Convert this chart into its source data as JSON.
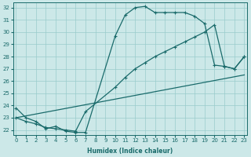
{
  "xlabel": "Humidex (Indice chaleur)",
  "bg_color": "#cce8e8",
  "line_color": "#1a6b6b",
  "grid_color": "#99cccc",
  "xlim": [
    -0.3,
    23.3
  ],
  "ylim": [
    21.6,
    32.4
  ],
  "yticks": [
    22,
    23,
    24,
    25,
    26,
    27,
    28,
    29,
    30,
    31,
    32
  ],
  "xticks": [
    0,
    1,
    2,
    3,
    4,
    5,
    6,
    7,
    8,
    9,
    10,
    11,
    12,
    13,
    14,
    15,
    16,
    17,
    18,
    19,
    20,
    21,
    22,
    23
  ],
  "curve1_x": [
    0,
    1,
    2,
    3,
    4,
    5,
    6,
    7,
    10,
    11,
    12,
    13,
    14,
    15,
    16,
    17,
    18,
    19,
    20,
    21,
    22,
    23
  ],
  "curve1_y": [
    23.8,
    23.0,
    22.7,
    22.1,
    22.3,
    21.9,
    21.8,
    21.8,
    29.7,
    31.4,
    32.0,
    32.1,
    31.6,
    31.6,
    31.6,
    31.6,
    31.3,
    30.7,
    27.3,
    27.2,
    27.0,
    28.0
  ],
  "curve2_x": [
    0,
    1,
    2,
    3,
    4,
    5,
    6,
    7,
    10,
    11,
    12,
    13,
    14,
    15,
    16,
    17,
    18,
    19,
    20,
    21,
    22,
    23
  ],
  "curve2_y": [
    23.0,
    22.7,
    22.5,
    22.2,
    22.1,
    22.0,
    21.9,
    23.5,
    25.5,
    26.3,
    27.0,
    27.5,
    28.0,
    28.4,
    28.8,
    29.2,
    29.6,
    30.0,
    30.6,
    27.2,
    27.0,
    28.0
  ],
  "curve3_x": [
    0,
    23
  ],
  "curve3_y": [
    23.0,
    26.5
  ]
}
